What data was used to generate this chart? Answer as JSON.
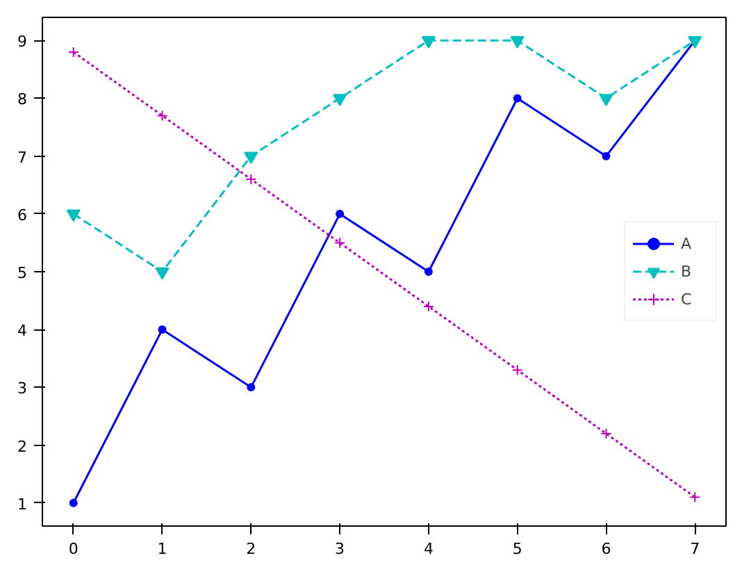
{
  "chart_data": {
    "type": "line",
    "x": [
      0,
      1,
      2,
      3,
      4,
      5,
      6,
      7
    ],
    "series": [
      {
        "name": "A",
        "color": "#0000ff",
        "values": [
          1,
          4,
          3,
          6,
          5,
          8,
          7,
          9
        ],
        "marker": "circle",
        "line_style": "solid"
      },
      {
        "name": "B",
        "color": "#00bfbf",
        "values": [
          6,
          5,
          7,
          8,
          9,
          9,
          8,
          9
        ],
        "marker": "triangle_down",
        "line_style": "dashed"
      },
      {
        "name": "C",
        "color": "#bf00bf",
        "values": [
          8.8,
          7.7,
          6.6,
          5.5,
          4.4,
          3.3,
          2.2,
          1.1
        ],
        "marker": "cross",
        "line_style": "dotted"
      }
    ],
    "xlim": [
      -0.35,
      7.35
    ],
    "ylim": [
      0.6,
      9.4
    ],
    "xticks": [
      0,
      1,
      2,
      3,
      4,
      5,
      6,
      7
    ],
    "yticks": [
      1,
      2,
      3,
      4,
      5,
      6,
      7,
      8,
      9
    ],
    "grid": false,
    "legend": "right"
  }
}
